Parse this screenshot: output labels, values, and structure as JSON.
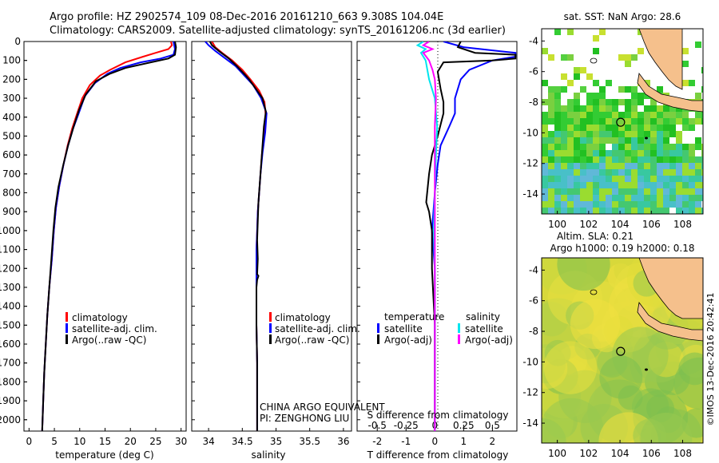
{
  "header": {
    "line1": "Argo profile: HZ 2902574_109 08-Dec-2016 20161210_663 9.308S 104.04E",
    "line2": "Climatology: CARS2009. Satellite-adjusted climatology: synTS_20161206.nc (3d earlier)"
  },
  "depth_ticks": [
    0,
    100,
    200,
    300,
    400,
    500,
    600,
    700,
    800,
    900,
    1000,
    1100,
    1200,
    1300,
    1400,
    1500,
    1600,
    1700,
    1800,
    1900,
    2000
  ],
  "colors": {
    "climatology": "#ff0000",
    "satellite": "#0000ff",
    "argo": "#000000",
    "satellite_salinity": "#00e5ee",
    "argo_salinity": "#ff00ff",
    "land": "#f5c08c"
  },
  "chart_data": [
    {
      "type": "line",
      "xlabel": "temperature (deg C)",
      "x_ticks": [
        0,
        5,
        10,
        15,
        20,
        25,
        30
      ],
      "xlim": [
        -1,
        31
      ],
      "ylim": [
        2060,
        0
      ],
      "legend": [
        "climatology",
        "satellite-adj. clim.",
        "Argo(..raw -QC)"
      ],
      "series": [
        {
          "name": "climatology",
          "points": [
            [
              28.0,
              0
            ],
            [
              28.2,
              20
            ],
            [
              27.5,
              40
            ],
            [
              25.0,
              60
            ],
            [
              22.5,
              80
            ],
            [
              19.0,
              110
            ],
            [
              16.0,
              150
            ],
            [
              14.0,
              180
            ],
            [
              12.0,
              230
            ],
            [
              10.5,
              300
            ],
            [
              9.5,
              380
            ],
            [
              8.5,
              460
            ],
            [
              7.6,
              550
            ],
            [
              6.8,
              650
            ],
            [
              6.0,
              760
            ],
            [
              5.3,
              880
            ],
            [
              4.9,
              1000
            ],
            [
              4.5,
              1150
            ],
            [
              4.0,
              1300
            ],
            [
              3.6,
              1450
            ],
            [
              3.3,
              1600
            ],
            [
              3.0,
              1750
            ],
            [
              2.8,
              1900
            ],
            [
              2.6,
              2060
            ]
          ]
        },
        {
          "name": "satellite-adj. clim.",
          "points": [
            [
              28.5,
              0
            ],
            [
              28.8,
              40
            ],
            [
              28.5,
              70
            ],
            [
              26.0,
              90
            ],
            [
              22.0,
              110
            ],
            [
              18.0,
              140
            ],
            [
              15.5,
              170
            ],
            [
              13.0,
              220
            ],
            [
              11.0,
              290
            ],
            [
              9.8,
              380
            ],
            [
              8.7,
              460
            ],
            [
              7.7,
              550
            ],
            [
              6.8,
              650
            ],
            [
              6.0,
              760
            ],
            [
              5.3,
              880
            ],
            [
              4.9,
              1000
            ],
            [
              4.5,
              1150
            ],
            [
              4.0,
              1300
            ],
            [
              3.6,
              1450
            ],
            [
              3.3,
              1600
            ],
            [
              3.0,
              1750
            ],
            [
              2.8,
              1900
            ],
            [
              2.6,
              2060
            ]
          ]
        },
        {
          "name": "Argo(..raw -QC)",
          "points": [
            [
              28.8,
              0
            ],
            [
              29.0,
              30
            ],
            [
              28.8,
              70
            ],
            [
              27.5,
              90
            ],
            [
              24.0,
              110
            ],
            [
              19.0,
              140
            ],
            [
              16.0,
              170
            ],
            [
              13.2,
              210
            ],
            [
              11.2,
              280
            ],
            [
              9.9,
              360
            ],
            [
              8.8,
              450
            ],
            [
              7.7,
              550
            ],
            [
              6.7,
              660
            ],
            [
              5.8,
              770
            ],
            [
              5.2,
              880
            ],
            [
              4.8,
              1000
            ],
            [
              4.4,
              1150
            ],
            [
              4.0,
              1300
            ],
            [
              3.6,
              1450
            ],
            [
              3.3,
              1600
            ],
            [
              3.0,
              1750
            ],
            [
              2.8,
              1900
            ],
            [
              2.6,
              2060
            ]
          ]
        }
      ]
    },
    {
      "type": "line",
      "xlabel": "salinity",
      "x_ticks": [
        34,
        34.5,
        35,
        35.5,
        36
      ],
      "x_tick_labels": [
        "34",
        "34.5",
        "35",
        "35.5",
        "36"
      ],
      "xlim": [
        33.75,
        36.12
      ],
      "ylim": [
        2060,
        0
      ],
      "legend": [
        "climatology",
        "satellite-adj. clim.",
        "Argo(..raw -QC)"
      ],
      "annotation": [
        "CHINA ARGO EQUIVALENT",
        "PI: ZENGHONG LIU"
      ],
      "series": [
        {
          "name": "climatology",
          "points": [
            [
              34.05,
              0
            ],
            [
              34.1,
              30
            ],
            [
              34.2,
              60
            ],
            [
              34.35,
              100
            ],
            [
              34.5,
              150
            ],
            [
              34.62,
              200
            ],
            [
              34.75,
              260
            ],
            [
              34.83,
              320
            ],
            [
              34.85,
              400
            ],
            [
              34.82,
              500
            ],
            [
              34.79,
              600
            ],
            [
              34.77,
              700
            ],
            [
              34.75,
              800
            ],
            [
              34.73,
              900
            ],
            [
              34.72,
              1000
            ],
            [
              34.71,
              1100
            ],
            [
              34.71,
              1200
            ],
            [
              34.71,
              1300
            ],
            [
              34.71,
              1500
            ],
            [
              34.72,
              1700
            ],
            [
              34.72,
              1900
            ],
            [
              34.72,
              2060
            ]
          ]
        },
        {
          "name": "satellite-adj. clim.",
          "points": [
            [
              33.95,
              0
            ],
            [
              34.0,
              20
            ],
            [
              34.1,
              50
            ],
            [
              34.25,
              90
            ],
            [
              34.4,
              130
            ],
            [
              34.53,
              180
            ],
            [
              34.66,
              230
            ],
            [
              34.78,
              300
            ],
            [
              34.86,
              380
            ],
            [
              34.84,
              480
            ],
            [
              34.8,
              590
            ],
            [
              34.77,
              700
            ],
            [
              34.75,
              800
            ],
            [
              34.73,
              900
            ],
            [
              34.72,
              1000
            ],
            [
              34.71,
              1100
            ],
            [
              34.71,
              1200
            ],
            [
              34.71,
              1300
            ],
            [
              34.71,
              1500
            ],
            [
              34.72,
              1700
            ],
            [
              34.72,
              1900
            ],
            [
              34.72,
              2060
            ]
          ]
        },
        {
          "name": "Argo(..raw -QC)",
          "points": [
            [
              34.02,
              0
            ],
            [
              34.05,
              20
            ],
            [
              34.15,
              50
            ],
            [
              34.3,
              90
            ],
            [
              34.42,
              130
            ],
            [
              34.55,
              180
            ],
            [
              34.6,
              200
            ],
            [
              34.7,
              250
            ],
            [
              34.8,
              300
            ],
            [
              34.85,
              370
            ],
            [
              34.82,
              450
            ],
            [
              34.8,
              550
            ],
            [
              34.78,
              650
            ],
            [
              34.76,
              750
            ],
            [
              34.74,
              850
            ],
            [
              34.73,
              950
            ],
            [
              34.72,
              1050
            ],
            [
              34.73,
              1150
            ],
            [
              34.72,
              1230
            ],
            [
              34.74,
              1240
            ],
            [
              34.72,
              1260
            ],
            [
              34.71,
              1300
            ],
            [
              34.71,
              1500
            ],
            [
              34.72,
              1700
            ],
            [
              34.72,
              1900
            ],
            [
              34.72,
              2060
            ]
          ]
        }
      ]
    },
    {
      "type": "line",
      "xlabel": "T difference from climatology",
      "x_ticks": [
        -2,
        -1,
        0,
        1,
        2
      ],
      "xlim": [
        -2.7,
        2.85
      ],
      "top_axis_label": "S difference from climatology",
      "s_ticks": [
        -0.5,
        -0.25,
        0,
        0.25,
        0.5
      ],
      "s_tick_labels": [
        "-0.5",
        "-0.25",
        "0",
        "0.25",
        "0.5"
      ],
      "s_lim": [
        -0.675,
        0.7125
      ],
      "ylim": [
        2060,
        0
      ],
      "legend_titles": [
        "temperature",
        "salinity"
      ],
      "legend": [
        "satellite",
        "Argo(-adj)",
        "satellite",
        "Argo(-adj)"
      ],
      "series": [
        {
          "name": "satellite",
          "axis": "T",
          "points": [
            [
              0.3,
              0
            ],
            [
              1.0,
              30
            ],
            [
              2.8,
              60
            ],
            [
              2.8,
              80
            ],
            [
              2.0,
              100
            ],
            [
              1.2,
              150
            ],
            [
              0.9,
              200
            ],
            [
              0.7,
              300
            ],
            [
              0.7,
              380
            ],
            [
              0.5,
              450
            ],
            [
              0.2,
              550
            ],
            [
              0.1,
              650
            ],
            [
              0.0,
              800
            ],
            [
              -0.1,
              1000
            ],
            [
              0.0,
              1200
            ],
            [
              0.0,
              1500
            ],
            [
              0.0,
              1800
            ],
            [
              0.0,
              2060
            ]
          ]
        },
        {
          "name": "Argo(-adj)",
          "axis": "T",
          "points": [
            [
              0.9,
              0
            ],
            [
              0.8,
              30
            ],
            [
              1.4,
              60
            ],
            [
              2.8,
              70
            ],
            [
              2.8,
              90
            ],
            [
              2.0,
              100
            ],
            [
              0.3,
              110
            ],
            [
              0.1,
              160
            ],
            [
              0.2,
              250
            ],
            [
              0.3,
              320
            ],
            [
              0.3,
              380
            ],
            [
              0.1,
              500
            ],
            [
              -0.1,
              600
            ],
            [
              -0.2,
              700
            ],
            [
              -0.3,
              850
            ],
            [
              -0.2,
              900
            ],
            [
              -0.1,
              1000
            ],
            [
              -0.1,
              1200
            ],
            [
              0.0,
              1500
            ],
            [
              0.0,
              1800
            ],
            [
              0.0,
              2060
            ]
          ]
        },
        {
          "name": "satellite",
          "axis": "S",
          "points": [
            [
              -0.1,
              0
            ],
            [
              -0.15,
              20
            ],
            [
              -0.08,
              40
            ],
            [
              -0.12,
              60
            ],
            [
              -0.08,
              100
            ],
            [
              -0.05,
              200
            ],
            [
              0.0,
              300
            ],
            [
              0.02,
              450
            ],
            [
              0.01,
              600
            ],
            [
              0.0,
              800
            ],
            [
              -0.01,
              1000
            ],
            [
              0.0,
              1200
            ],
            [
              0.0,
              1400
            ],
            [
              0.0,
              1600
            ],
            [
              0.0,
              1800
            ],
            [
              0.0,
              2060
            ]
          ]
        },
        {
          "name": "Argo(-adj)",
          "axis": "S",
          "points": [
            [
              -0.05,
              0
            ],
            [
              -0.1,
              20
            ],
            [
              -0.02,
              40
            ],
            [
              -0.1,
              60
            ],
            [
              -0.05,
              100
            ],
            [
              -0.02,
              150
            ],
            [
              0.0,
              200
            ],
            [
              0.01,
              300
            ],
            [
              0.0,
              450
            ],
            [
              0.0,
              600
            ],
            [
              0.0,
              800
            ],
            [
              0.0,
              1000
            ],
            [
              0.0,
              1200
            ],
            [
              0.0,
              1400
            ],
            [
              0.0,
              1600
            ],
            [
              0.0,
              1800
            ],
            [
              0.0,
              2060
            ]
          ]
        }
      ]
    },
    {
      "type": "heatmap",
      "title": "sat. SST: NaN Argo: 28.6",
      "x_ticks": [
        100,
        102,
        104,
        106,
        108
      ],
      "y_ticks": [
        -4,
        -6,
        -8,
        -10,
        -12,
        -14
      ],
      "xlim": [
        99,
        109.3
      ],
      "ylim": [
        -15.3,
        -3.2
      ],
      "argo_position": [
        104.04,
        -9.308
      ]
    },
    {
      "type": "heatmap",
      "title": "Altim. SLA: 0.21",
      "subtitle": "Argo h1000: 0.19 h2000: 0.18",
      "x_ticks": [
        100,
        102,
        104,
        106,
        108
      ],
      "y_ticks": [
        -4,
        -6,
        -8,
        -10,
        -12,
        -14
      ],
      "xlim": [
        99,
        109.3
      ],
      "ylim": [
        -15.3,
        -3.2
      ],
      "argo_position": [
        104.04,
        -9.308
      ]
    }
  ],
  "credit": "©IMOS 13-Dec-2016 20:42:41"
}
